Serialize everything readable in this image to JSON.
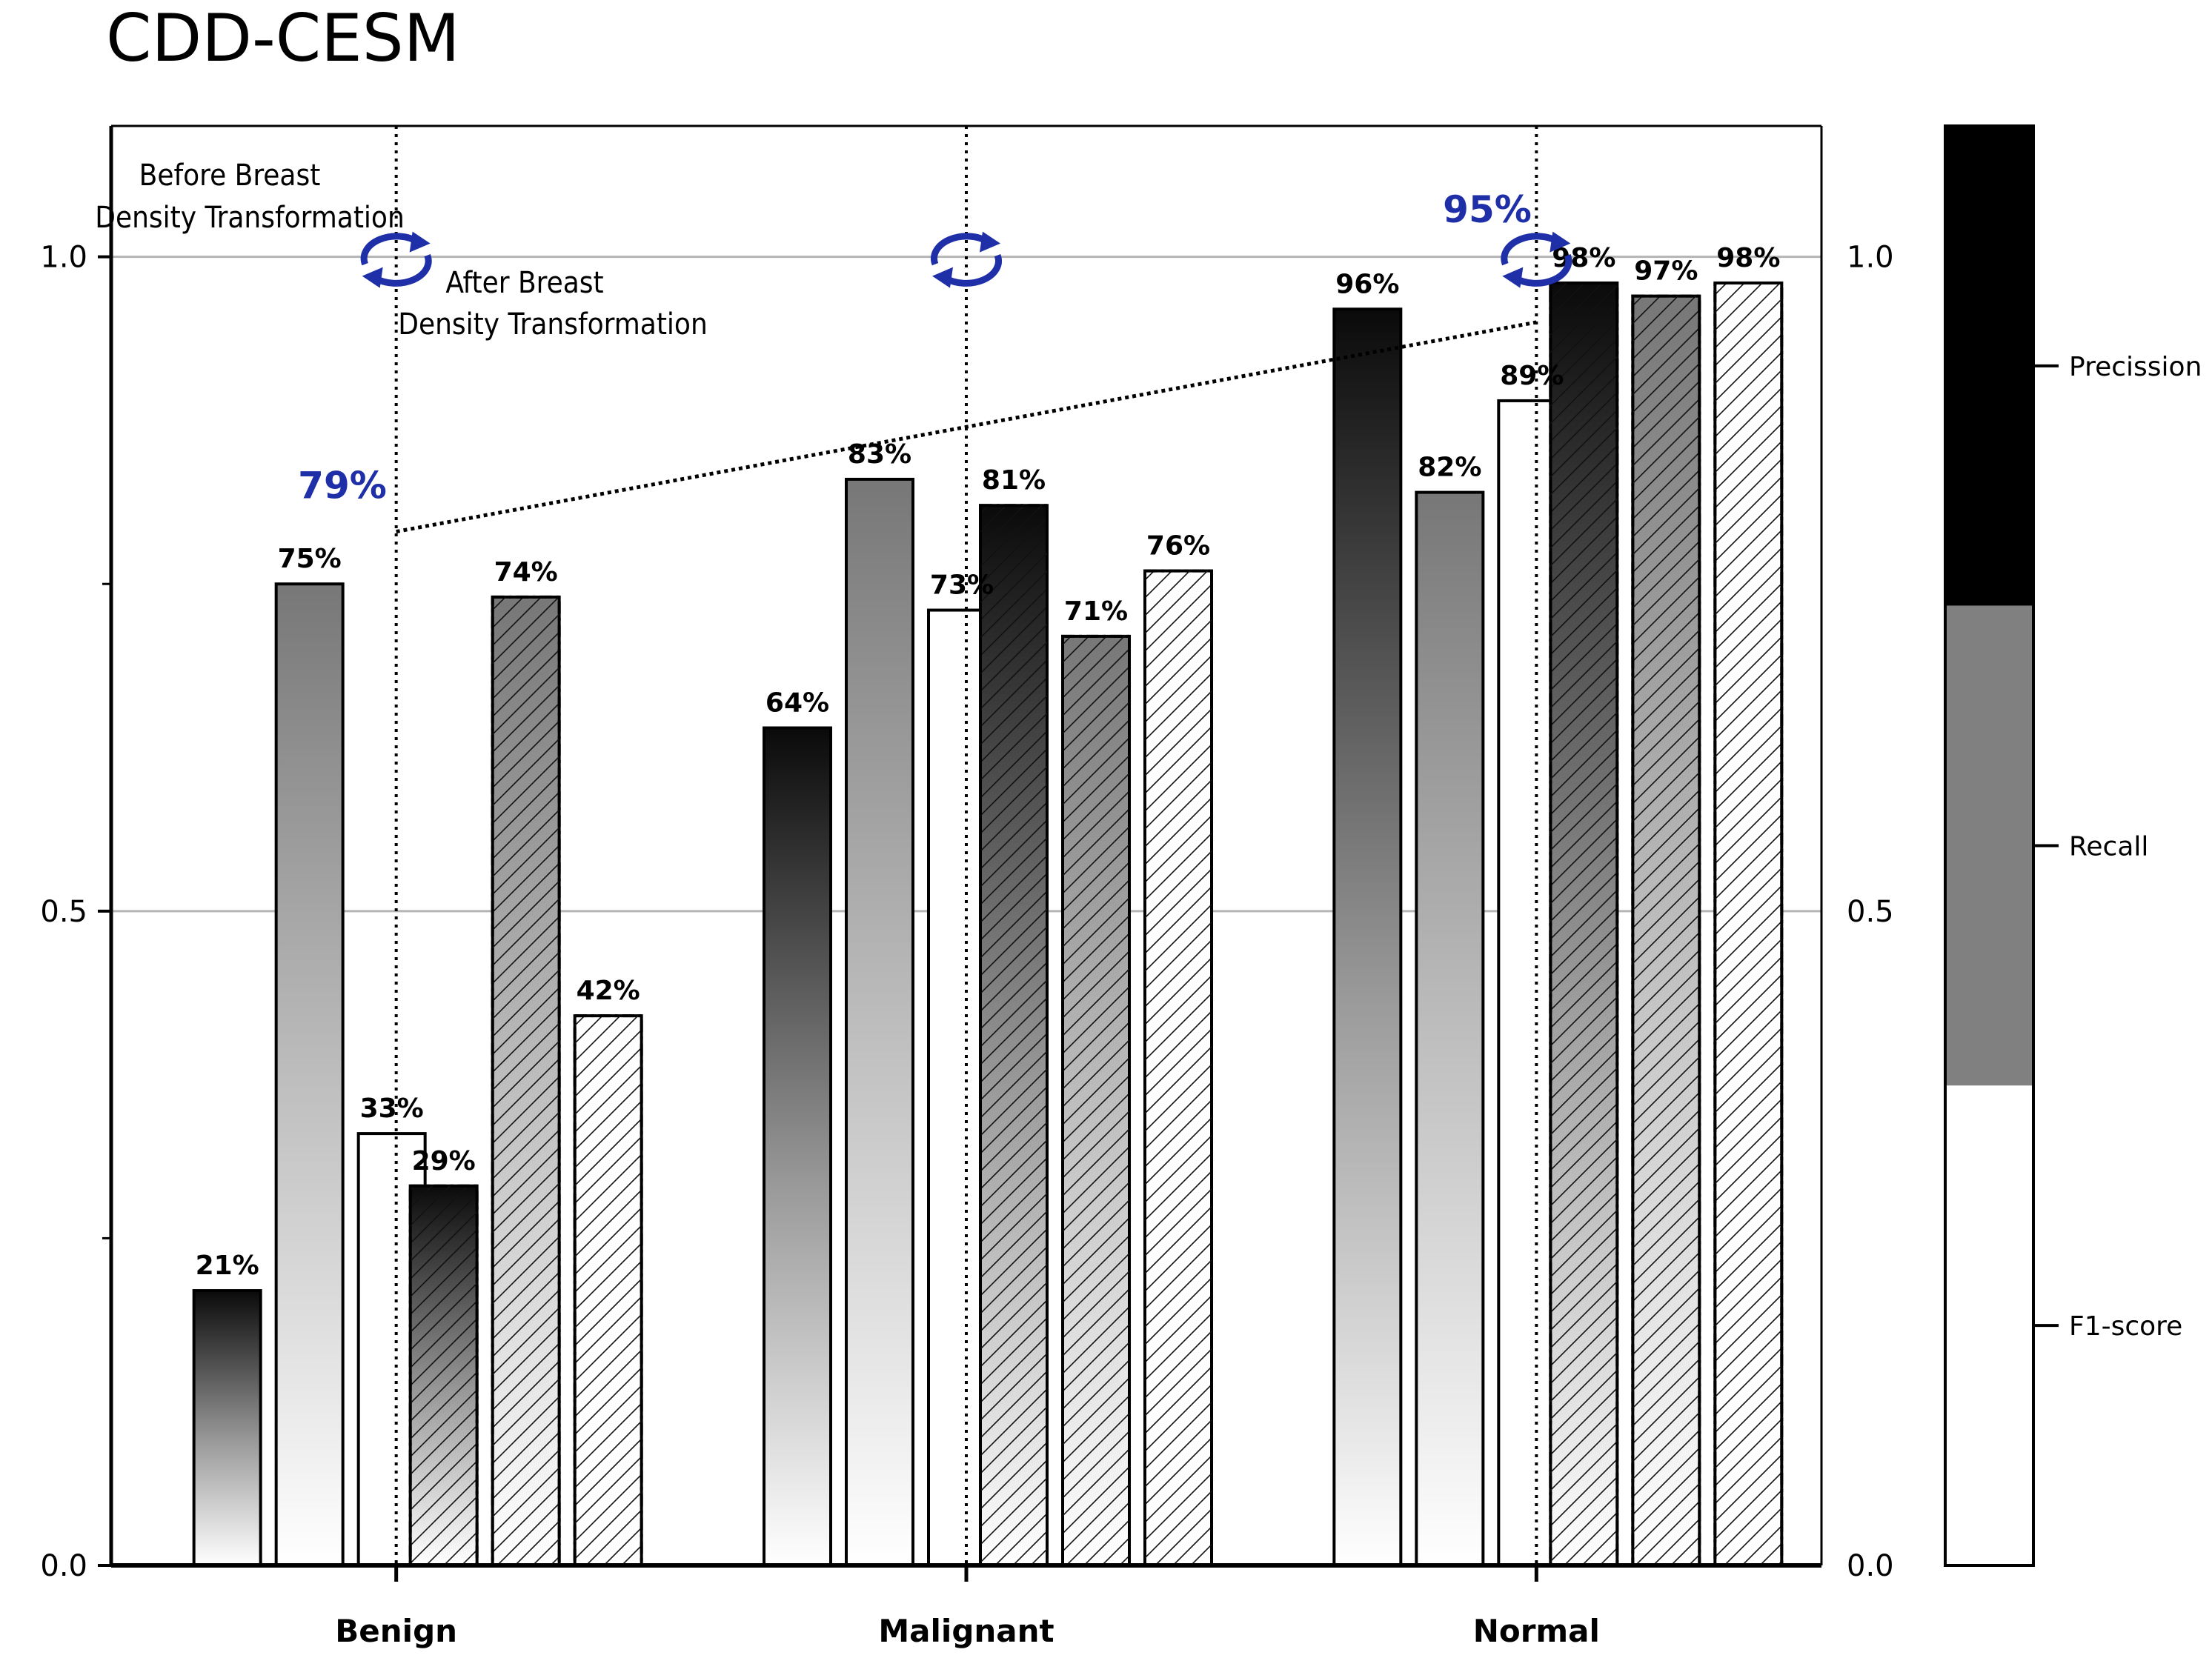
{
  "chart_data": {
    "type": "bar",
    "title": "CDD-CESM",
    "categories": [
      "Benign",
      "Malignant",
      "Normal"
    ],
    "ylim": [
      0,
      1.1
    ],
    "yticks": [
      "0.0",
      "0.5",
      "1.0"
    ],
    "grid": "horizontal at 0.5 and 1.0",
    "series": [
      {
        "name": "Precission",
        "phase": "before",
        "values": [
          0.21,
          0.64,
          0.96
        ],
        "labels": [
          "21%",
          "64%",
          "96%"
        ]
      },
      {
        "name": "Recall",
        "phase": "before",
        "values": [
          0.75,
          0.83,
          0.82
        ],
        "labels": [
          "75%",
          "83%",
          "82%"
        ]
      },
      {
        "name": "F1-score",
        "phase": "before",
        "values": [
          0.33,
          0.73,
          0.89
        ],
        "labels": [
          "33%",
          "73%",
          "89%"
        ]
      },
      {
        "name": "Precission",
        "phase": "after",
        "values": [
          0.29,
          0.81,
          0.98
        ],
        "labels": [
          "29%",
          "81%",
          "98%"
        ]
      },
      {
        "name": "Recall",
        "phase": "after",
        "values": [
          0.74,
          0.71,
          0.97
        ],
        "labels": [
          "74%",
          "71%",
          "97%"
        ]
      },
      {
        "name": "F1-score",
        "phase": "after",
        "values": [
          0.42,
          0.76,
          0.98
        ],
        "labels": [
          "42%",
          "76%",
          "98%"
        ]
      }
    ],
    "annotations": {
      "before": "Before Breast Density Transformation",
      "before_line1": "Before Breast",
      "before_line2": "Density Transformation",
      "after_line1": "After Breast",
      "after_line2": "Density Transformation",
      "overall_start": "79%",
      "overall_end": "95%",
      "overall_start_value": 0.79,
      "overall_end_value": 0.95
    },
    "legend": {
      "placement": "right",
      "items": [
        "Precission",
        "Recall",
        "F1-score"
      ],
      "colors": [
        "#000000",
        "#808080",
        "#ffffff"
      ]
    },
    "colors": {
      "accent": "#1e2fa8",
      "grid": "#b4b4b4"
    }
  }
}
